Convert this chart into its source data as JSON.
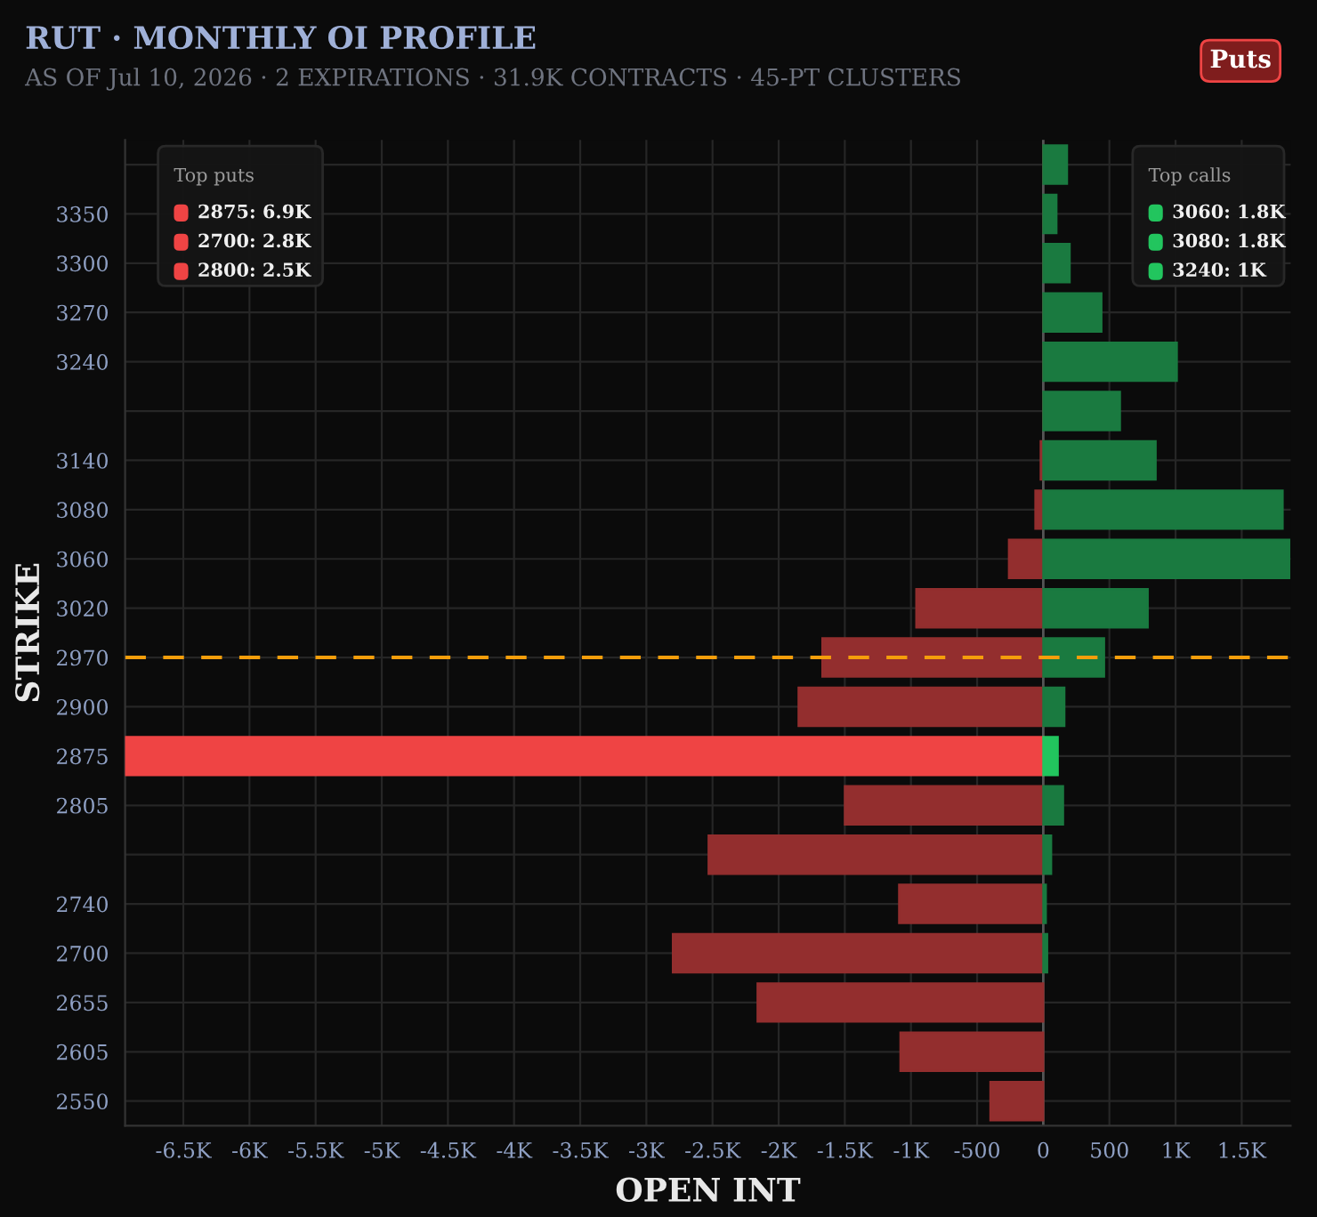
{
  "chart_data": {
    "type": "bar",
    "orientation": "horizontal",
    "title": "RUT · MONTHLY OI PROFILE",
    "subtitle": "AS OF Jul 10, 2026 · 2 EXPIRATIONS · 31.9K CONTRACTS · 45-PT CLUSTERS",
    "xlabel": "OPEN INT",
    "ylabel": "STRIKE",
    "categories": [
      null,
      "3350",
      "3300",
      "3270",
      "3240",
      null,
      "3140",
      "3080",
      "3060",
      "3020",
      "2970",
      "2900",
      "2875",
      "2805",
      null,
      "2740",
      "2700",
      "2655",
      "2605",
      "2550"
    ],
    "series": [
      {
        "color": "#932e2e",
        "colors": [
          "#932e2e",
          "#932e2e",
          "#932e2e",
          "#932e2e",
          "#932e2e",
          "#932e2e",
          "#932e2e",
          "#932e2e",
          "#932e2e",
          "#932e2e",
          "#932e2e",
          "#932e2e",
          "#ef4444",
          "#932e2e",
          "#932e2e",
          "#932e2e",
          "#932e2e",
          "#932e2e",
          "#932e2e",
          "#932e2e"
        ],
        "values": [
          0,
          0,
          0,
          0,
          0,
          0,
          -20,
          -60,
          -260,
          -960,
          -1670,
          -1850,
          -6940,
          -1500,
          -2530,
          -1090,
          -2800,
          -2160,
          -1080,
          -400
        ]
      },
      {
        "color": "#1a7a40",
        "colors": [
          "#1a7a40",
          "#1a7a40",
          "#1a7a40",
          "#1a7a40",
          "#1a7a40",
          "#1a7a40",
          "#1a7a40",
          "#1a7a40",
          "#1a7a40",
          "#1a7a40",
          "#1a7a40",
          "#1a7a40",
          "#22c55e",
          "#1a7a40",
          "#1a7a40",
          "#1a7a40",
          "#1a7a40",
          "#1a7a40",
          "#1a7a40",
          "#1a7a40"
        ],
        "values": [
          180,
          100,
          200,
          440,
          1010,
          580,
          850,
          1810,
          1860,
          790,
          460,
          160,
          110,
          150,
          60,
          20,
          30,
          null,
          null,
          null
        ]
      }
    ],
    "xlim": [
      -6940,
      1870
    ],
    "xticks": [
      {
        "value": -6500,
        "label": "-6.5K"
      },
      {
        "value": -6000,
        "label": "-6K"
      },
      {
        "value": -5500,
        "label": "-5.5K"
      },
      {
        "value": -5000,
        "label": "-5K"
      },
      {
        "value": -4500,
        "label": "-4.5K"
      },
      {
        "value": -4000,
        "label": "-4K"
      },
      {
        "value": -3500,
        "label": "-3.5K"
      },
      {
        "value": -3000,
        "label": "-3K"
      },
      {
        "value": -2500,
        "label": "-2.5K"
      },
      {
        "value": -2000,
        "label": "-2K"
      },
      {
        "value": -1500,
        "label": "-1.5K"
      },
      {
        "value": -1000,
        "label": "-1K"
      },
      -500,
      0,
      500,
      {
        "value": 1000,
        "label": "1K"
      },
      {
        "value": 1500,
        "label": "1.5K"
      }
    ],
    "ref_lines": [
      {
        "axis": "y",
        "value": "2970",
        "color": "#f59e0b",
        "line_style": "dashed"
      }
    ],
    "annotations": [
      "Top puts",
      "2875: 6.9K",
      "2700: 2.8K",
      "2800: 2.5K",
      "Top calls",
      "3060: 1.8K",
      "3080: 1.8K",
      "3240: 1K",
      "Puts"
    ],
    "grid": true
  }
}
